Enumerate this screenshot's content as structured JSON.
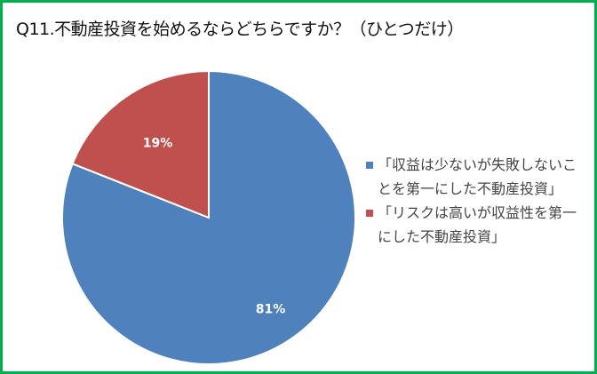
{
  "chart_data": {
    "type": "pie",
    "title": "Q11.不動産投資を始めるならどちらですか？（ひとつだけ）",
    "categories": [
      "「収益は少ないが失敗しないことを第一にした不動産投資」",
      "「リスクは高いが収益性を第一にした不動産投資」"
    ],
    "values": [
      81,
      19
    ],
    "data_labels": [
      "81%",
      "19%"
    ],
    "colors": [
      "#4f81bd",
      "#c0504d"
    ],
    "legend_position": "right"
  },
  "border_color": "#00b050"
}
